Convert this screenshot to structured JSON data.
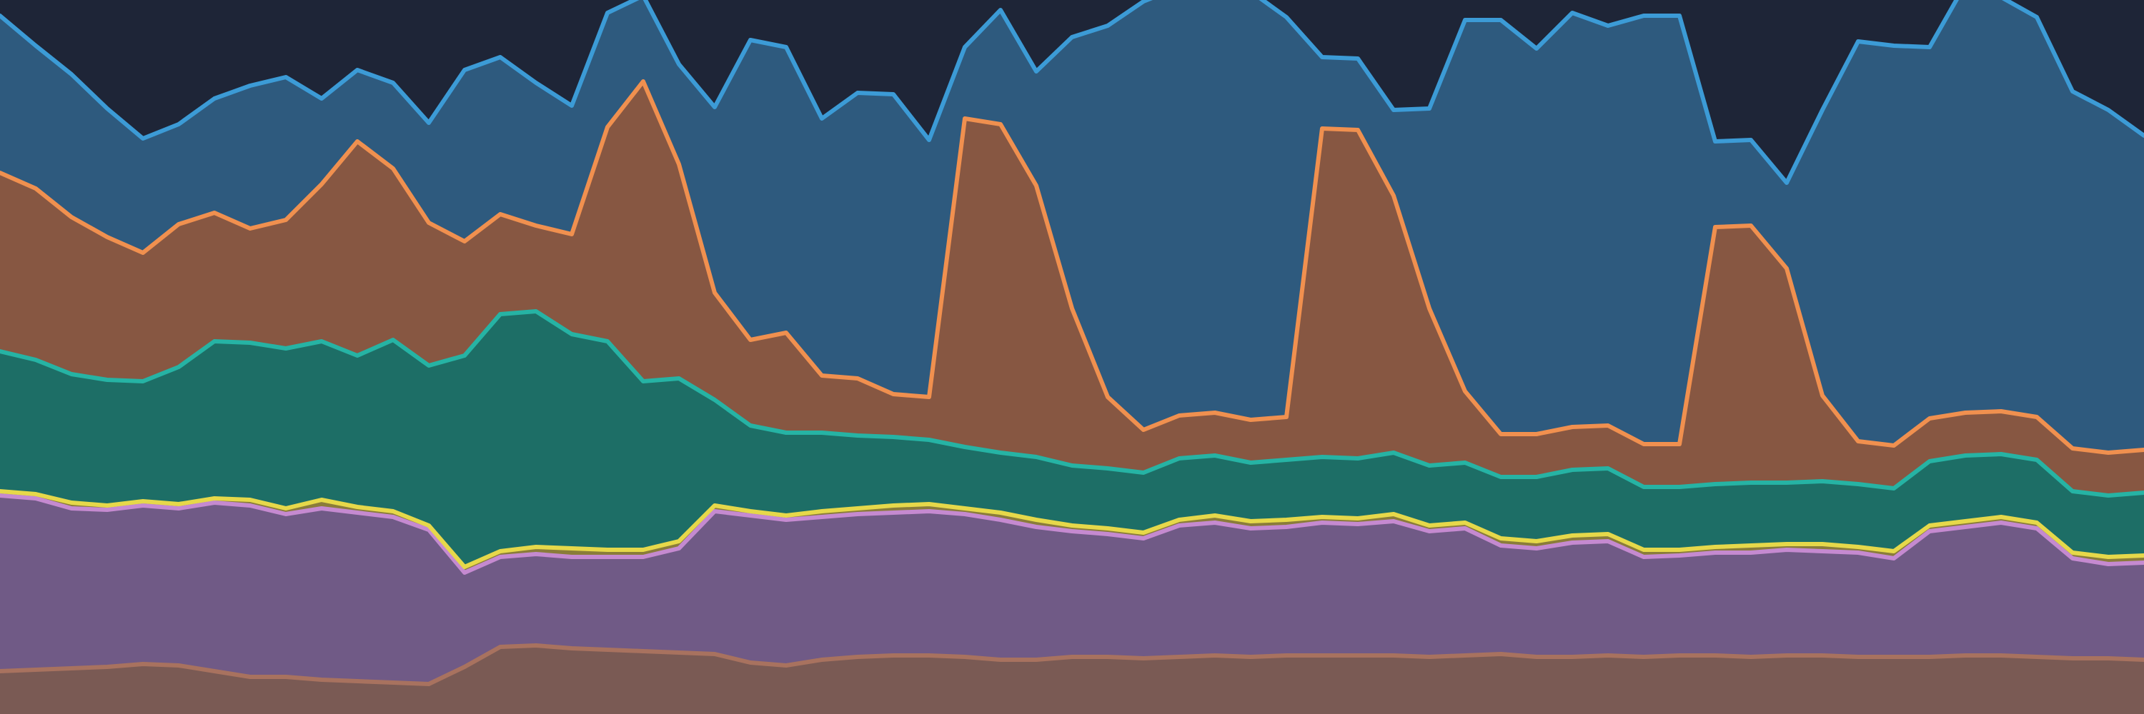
{
  "chart_data": {
    "type": "area",
    "stacked": true,
    "grid": false,
    "legend": "none",
    "title": "",
    "xlabel": "",
    "ylabel": "",
    "x": [
      0,
      25,
      50,
      75,
      100,
      125,
      150,
      175,
      200,
      225,
      250,
      275,
      300,
      325,
      350,
      375,
      400,
      425,
      450,
      475,
      500,
      525,
      550,
      575,
      600,
      625,
      650,
      675,
      700,
      725,
      750,
      775,
      800,
      825,
      850,
      875,
      900,
      925,
      950,
      975,
      1000,
      1025,
      1050,
      1075,
      1100,
      1125,
      1150,
      1175,
      1200,
      1225,
      1250,
      1275,
      1300,
      1325,
      1350,
      1375,
      1400,
      1425,
      1450,
      1475,
      1500
    ],
    "ylim": [
      0,
      500
    ],
    "series": [
      {
        "color": "#7a5a54",
        "values": [
          30,
          31,
          32,
          33,
          35,
          34,
          30,
          26,
          26,
          24,
          23,
          22,
          21,
          33,
          47,
          48,
          46,
          45,
          44,
          43,
          42,
          36,
          34,
          38,
          40,
          41,
          41,
          40,
          38,
          38,
          40,
          40,
          39,
          40,
          41,
          40,
          41,
          41,
          41,
          41,
          40,
          41,
          42,
          40,
          40,
          41,
          40,
          41,
          41,
          40,
          41,
          41,
          40,
          40,
          40,
          41,
          41,
          40,
          39,
          39,
          38
        ]
      },
      {
        "color": "#705a86",
        "values": [
          123,
          120,
          112,
          110,
          111,
          110,
          118,
          120,
          114,
          120,
          118,
          116,
          108,
          66,
          63,
          64,
          64,
          65,
          66,
          73,
          100,
          103,
          102,
          100,
          100,
          100,
          101,
          100,
          98,
          93,
          88,
          86,
          84,
          92,
          93,
          90,
          90,
          93,
          92,
          94,
          88,
          89,
          76,
          76,
          80,
          80,
          70,
          70,
          72,
          73,
          74,
          73,
          73,
          69,
          88,
          90,
          93,
          90,
          70,
          66,
          68
        ]
      },
      {
        "color": "#8a7c3a",
        "values": [
          3,
          3,
          4,
          3,
          3,
          3,
          3,
          4,
          4,
          6,
          4,
          4,
          3,
          4,
          4,
          5,
          6,
          5,
          5,
          5,
          4,
          3,
          3,
          4,
          4,
          5,
          5,
          4,
          5,
          5,
          4,
          4,
          4,
          4,
          5,
          5,
          5,
          4,
          4,
          5,
          4,
          4,
          5,
          5,
          5,
          5,
          5,
          4,
          4,
          5,
          4,
          5,
          4,
          5,
          4,
          4,
          4,
          4,
          4,
          5,
          5
        ]
      },
      {
        "color": "#1d6e66",
        "values": [
          98,
          94,
          90,
          88,
          84,
          96,
          110,
          110,
          112,
          111,
          106,
          120,
          112,
          148,
          166,
          165,
          150,
          146,
          118,
          114,
          74,
          60,
          58,
          55,
          51,
          48,
          45,
          43,
          42,
          44,
          42,
          42,
          42,
          43,
          42,
          41,
          42,
          42,
          42,
          43,
          42,
          42,
          43,
          45,
          46,
          46,
          44,
          44,
          44,
          44,
          43,
          44,
          44,
          44,
          45,
          46,
          44,
          44,
          43,
          43,
          44
        ]
      },
      {
        "color": "#875742",
        "values": [
          125,
          120,
          110,
          100,
          90,
          100,
          90,
          80,
          90,
          110,
          150,
          120,
          100,
          80,
          70,
          60,
          70,
          150,
          210,
          150,
          75,
          60,
          70,
          40,
          40,
          30,
          30,
          230,
          230,
          190,
          110,
          50,
          30,
          30,
          30,
          30,
          30,
          230,
          230,
          180,
          110,
          50,
          30,
          30,
          30,
          30,
          30,
          30,
          180,
          180,
          150,
          60,
          30,
          30,
          30,
          30,
          30,
          30,
          30,
          30,
          30
        ]
      },
      {
        "color": "#2e5a7e",
        "values": [
          110,
          100,
          100,
          90,
          80,
          70,
          80,
          100,
          100,
          60,
          50,
          60,
          70,
          120,
          110,
          100,
          90,
          80,
          60,
          70,
          130,
          210,
          200,
          180,
          200,
          210,
          180,
          50,
          80,
          80,
          190,
          260,
          300,
          300,
          300,
          300,
          280,
          50,
          50,
          60,
          140,
          260,
          290,
          270,
          290,
          280,
          300,
          300,
          60,
          60,
          60,
          200,
          280,
          280,
          260,
          300,
          290,
          280,
          250,
          240,
          220
        ]
      }
    ]
  }
}
